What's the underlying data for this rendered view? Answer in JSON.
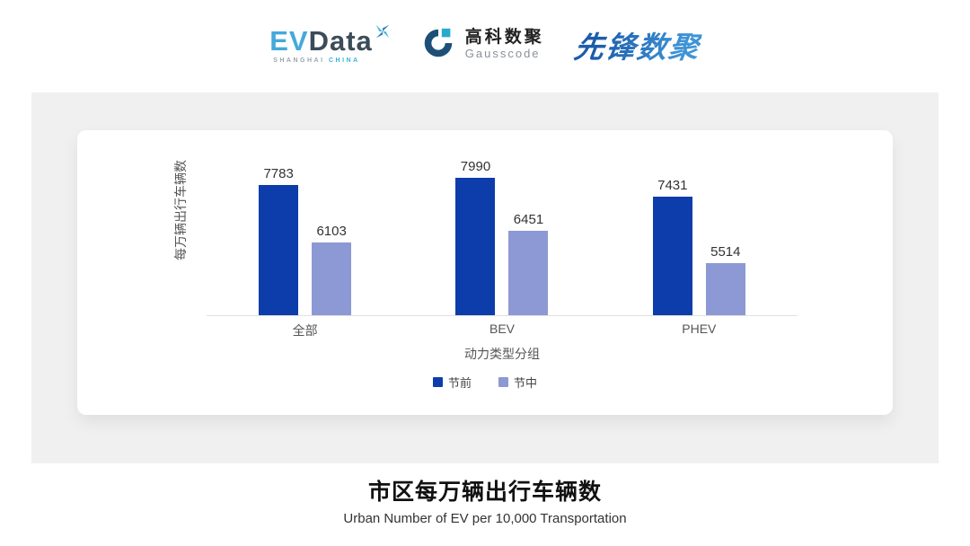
{
  "header": {
    "evdata": {
      "ev": "EV",
      "data": "Data",
      "sub_left": "SHANGHAI",
      "sub_right": "CHINA"
    },
    "gausscode": {
      "cn": "高科数聚",
      "en": "Gausscode"
    },
    "pioneer": {
      "text": "先锋数聚"
    }
  },
  "chart_data": {
    "type": "bar",
    "categories": [
      "全部",
      "BEV",
      "PHEV"
    ],
    "series": [
      {
        "name": "节前",
        "color": "#0d3dab",
        "values": [
          7783,
          7990,
          7431
        ]
      },
      {
        "name": "节中",
        "color": "#8d99d4",
        "values": [
          6103,
          6451,
          5514
        ]
      }
    ],
    "xlabel": "动力类型分组",
    "ylabel": "每万辆出行车辆数",
    "ylim": [
      4000,
      8300
    ],
    "grid": false,
    "legend_position": "bottom",
    "value_labels": true,
    "title": "市区每万辆出行车辆数",
    "subtitle": "Urban Number of EV per 10,000 Transportation"
  },
  "footer": {
    "title": "市区每万辆出行车辆数",
    "subtitle": "Urban Number of EV per 10,000 Transportation"
  },
  "colors": {
    "panel_bg": "#f0f0f1",
    "card_bg": "#ffffff",
    "series_pre": "#0d3dab",
    "series_mid": "#8d99d4",
    "axis_line": "#e0e0e0"
  }
}
